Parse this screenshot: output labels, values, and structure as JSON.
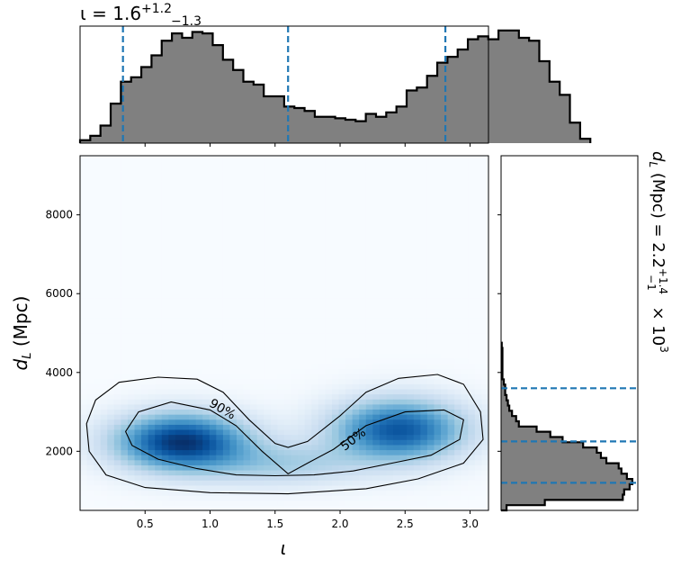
{
  "chart_data": [
    {
      "type": "heatmap",
      "panel": "joint",
      "xlabel": "ι",
      "ylabel": "d_L (Mpc)",
      "xlim": [
        0.0,
        3.1416
      ],
      "ylim": [
        500,
        9500
      ],
      "xticks": [
        0.5,
        1.0,
        1.5,
        2.0,
        2.5,
        3.0
      ],
      "xtick_labels": [
        "0.5",
        "1.0",
        "1.5",
        "2.0",
        "2.5",
        "3.0"
      ],
      "yticks": [
        2000,
        4000,
        6000,
        8000
      ],
      "ytick_labels": [
        "2000",
        "4000",
        "6000",
        "8000"
      ],
      "colormap": "Blues",
      "density_modes": [
        {
          "x": 0.78,
          "y": 2250,
          "sx": 0.34,
          "sy": 480,
          "weight": 1.0
        },
        {
          "x": 2.45,
          "y": 2550,
          "sx": 0.34,
          "sy": 520,
          "weight": 0.85
        },
        {
          "x": 1.55,
          "y": 1700,
          "sx": 0.45,
          "sy": 380,
          "weight": 0.28
        }
      ],
      "contours": [
        {
          "label": "90%",
          "points": [
            [
              0.05,
              2700
            ],
            [
              0.12,
              3300
            ],
            [
              0.3,
              3750
            ],
            [
              0.6,
              3880
            ],
            [
              0.9,
              3830
            ],
            [
              1.1,
              3500
            ],
            [
              1.3,
              2800
            ],
            [
              1.5,
              2200
            ],
            [
              1.6,
              2100
            ],
            [
              1.75,
              2250
            ],
            [
              2.0,
              2900
            ],
            [
              2.2,
              3500
            ],
            [
              2.45,
              3850
            ],
            [
              2.75,
              3950
            ],
            [
              2.95,
              3700
            ],
            [
              3.08,
              3000
            ],
            [
              3.1,
              2300
            ],
            [
              2.95,
              1700
            ],
            [
              2.6,
              1300
            ],
            [
              2.2,
              1050
            ],
            [
              1.6,
              920
            ],
            [
              1.0,
              950
            ],
            [
              0.5,
              1080
            ],
            [
              0.2,
              1400
            ],
            [
              0.07,
              2000
            ],
            [
              0.05,
              2700
            ]
          ]
        },
        {
          "label": "50%",
          "points": [
            [
              0.35,
              2500
            ],
            [
              0.45,
              3000
            ],
            [
              0.7,
              3250
            ],
            [
              1.0,
              3050
            ],
            [
              1.2,
              2650
            ],
            [
              1.4,
              2000
            ],
            [
              1.6,
              1430
            ],
            [
              1.75,
              1700
            ],
            [
              1.95,
              2050
            ],
            [
              2.2,
              2650
            ],
            [
              2.5,
              3000
            ],
            [
              2.8,
              3050
            ],
            [
              2.95,
              2800
            ],
            [
              2.92,
              2300
            ],
            [
              2.7,
              1900
            ],
            [
              2.4,
              1700
            ],
            [
              2.1,
              1500
            ],
            [
              1.8,
              1400
            ],
            [
              1.5,
              1380
            ],
            [
              1.2,
              1400
            ],
            [
              0.9,
              1560
            ],
            [
              0.6,
              1800
            ],
            [
              0.4,
              2150
            ],
            [
              0.35,
              2500
            ]
          ]
        }
      ],
      "contour_labels": [
        "90%",
        "50%"
      ]
    },
    {
      "type": "bar",
      "panel": "top-marginal",
      "variable": "ι",
      "title": "ι = 1.6^{+1.2}_{-1.3}",
      "title_parts": {
        "base": "ι = 1.6",
        "upper": "+1.2",
        "lower": "−1.3"
      },
      "xlim": [
        0.0,
        3.1416
      ],
      "bin_edges_start": 0.0,
      "bin_width": 0.0785,
      "values": [
        2,
        5,
        12,
        27,
        42,
        45,
        52,
        60,
        70,
        75,
        72,
        76,
        75,
        67,
        57,
        50,
        42,
        40,
        32,
        32,
        25,
        24,
        22,
        18,
        18,
        17,
        16,
        15,
        20,
        18,
        21,
        25,
        36,
        38,
        46,
        55,
        59,
        64,
        71,
        73,
        71,
        77,
        77,
        72,
        70,
        56,
        42,
        33,
        14,
        3
      ],
      "ylim": [
        0,
        80
      ],
      "quantile_lines": [
        0.33,
        1.6,
        2.81
      ],
      "line_color": "#1f77b4",
      "fill_color": "#808080"
    },
    {
      "type": "bar",
      "panel": "right-marginal",
      "orientation": "horizontal",
      "variable": "d_L",
      "title": "d_L (Mpc) = 2.2^{+1.4}_{-1} × 10^3",
      "title_parts": {
        "base": "d_L (Mpc) = 2.2",
        "upper": "+1.4",
        "lower": "−1",
        "suffix": "× 10",
        "exponent": "3"
      },
      "ylim": [
        500,
        9500
      ],
      "bin_edges_start": 500,
      "bin_width": 133,
      "values": [
        4,
        32,
        89,
        90,
        94,
        96,
        92,
        88,
        86,
        77,
        73,
        70,
        60,
        45,
        36,
        26,
        13,
        11,
        8,
        6,
        5,
        4,
        3,
        3,
        2,
        1,
        1,
        1,
        1,
        1,
        1,
        0.5
      ],
      "xlim": [
        0,
        100
      ],
      "quantile_lines": [
        1200,
        2250,
        3600
      ],
      "line_color": "#1f77b4",
      "fill_color": "#808080"
    }
  ]
}
